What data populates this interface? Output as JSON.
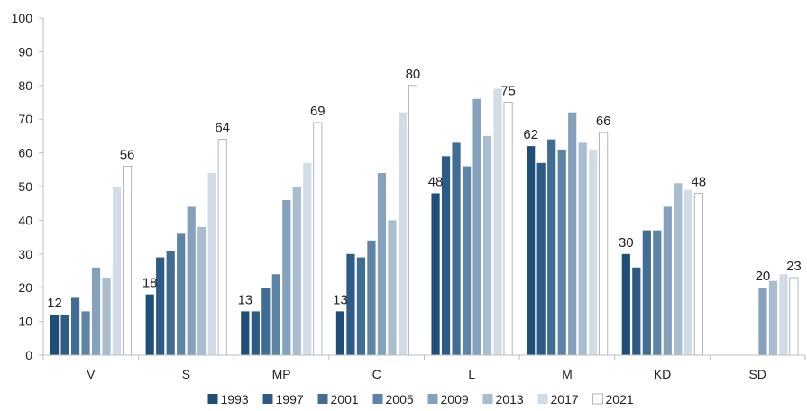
{
  "chart_data": {
    "type": "bar",
    "title": "",
    "xlabel": "",
    "ylabel": "",
    "ylim": [
      0,
      100
    ],
    "yticks": [
      0,
      10,
      20,
      30,
      40,
      50,
      60,
      70,
      80,
      90,
      100
    ],
    "grid": false,
    "legend": "bottom",
    "categories": [
      "V",
      "S",
      "MP",
      "C",
      "L",
      "M",
      "KD",
      "SD"
    ],
    "series": [
      {
        "name": "1993",
        "color": "#1f4e79",
        "values": [
          12,
          18,
          13,
          13,
          48,
          62,
          30,
          null
        ]
      },
      {
        "name": "1997",
        "color": "#2e5b85",
        "values": [
          12,
          29,
          13,
          30,
          59,
          57,
          26,
          null
        ]
      },
      {
        "name": "2001",
        "color": "#416d93",
        "values": [
          17,
          31,
          20,
          29,
          63,
          64,
          37,
          null
        ]
      },
      {
        "name": "2005",
        "color": "#5d83a6",
        "values": [
          13,
          36,
          24,
          34,
          56,
          61,
          37,
          null
        ]
      },
      {
        "name": "2009",
        "color": "#85a1bb",
        "values": [
          26,
          44,
          46,
          54,
          76,
          72,
          44,
          20
        ]
      },
      {
        "name": "2013",
        "color": "#a9bdd0",
        "values": [
          23,
          38,
          50,
          40,
          65,
          63,
          51,
          22
        ]
      },
      {
        "name": "2017",
        "color": "#d2dce6",
        "values": [
          50,
          54,
          57,
          72,
          79,
          61,
          49,
          24
        ]
      },
      {
        "name": "2021",
        "color": "#ffffff",
        "values": [
          56,
          64,
          69,
          80,
          75,
          66,
          48,
          23
        ]
      }
    ],
    "data_labels": [
      {
        "category": "V",
        "series": "1993",
        "text": "12"
      },
      {
        "category": "V",
        "series": "2021",
        "text": "56"
      },
      {
        "category": "S",
        "series": "1993",
        "text": "18"
      },
      {
        "category": "S",
        "series": "2021",
        "text": "64"
      },
      {
        "category": "MP",
        "series": "1993",
        "text": "13"
      },
      {
        "category": "MP",
        "series": "2021",
        "text": "69"
      },
      {
        "category": "C",
        "series": "1993",
        "text": "13"
      },
      {
        "category": "C",
        "series": "2021",
        "text": "80"
      },
      {
        "category": "L",
        "series": "1993",
        "text": "48"
      },
      {
        "category": "L",
        "series": "2021",
        "text": "75"
      },
      {
        "category": "M",
        "series": "1993",
        "text": "62"
      },
      {
        "category": "M",
        "series": "2021",
        "text": "66"
      },
      {
        "category": "KD",
        "series": "1993",
        "text": "30"
      },
      {
        "category": "KD",
        "series": "2021",
        "text": "48"
      },
      {
        "category": "SD",
        "series": "2009",
        "text": "20"
      },
      {
        "category": "SD",
        "series": "2021",
        "text": "23"
      }
    ]
  }
}
